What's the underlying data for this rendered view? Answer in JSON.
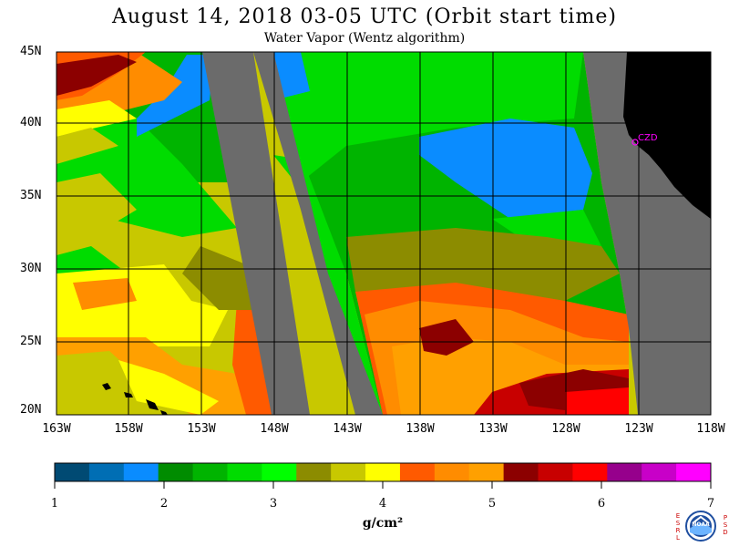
{
  "title": "August 14, 2018  03-05 UTC  (Orbit start time)",
  "subtitle": "Water Vapor (Wentz algorithm)",
  "map": {
    "lat_labels": [
      "45N",
      "40N",
      "35N",
      "30N",
      "25N",
      "20N"
    ],
    "lon_labels": [
      "163W",
      "158W",
      "153W",
      "148W",
      "143W",
      "138W",
      "133W",
      "128W",
      "123W",
      "118W"
    ],
    "station": "CZD",
    "colors": {
      "land": "#000000",
      "nodata": "#6b6b6b",
      "grid": "#000000",
      "station": "#ff00ff"
    }
  },
  "colorbar": {
    "ticks": [
      "1",
      "2",
      "3",
      "4",
      "5",
      "6",
      "7"
    ],
    "units": "g/cm²",
    "colors": [
      "#004a73",
      "#006eb4",
      "#0a8cff",
      "#008c00",
      "#00b400",
      "#00dc00",
      "#00ff00",
      "#8c8c00",
      "#c8c800",
      "#ffff00",
      "#ff5a00",
      "#ff8c00",
      "#ffa000",
      "#8c0000",
      "#c80000",
      "#ff0000",
      "#96008c",
      "#c800c8",
      "#ff00ff"
    ]
  },
  "logo": {
    "left_text": "ESRL",
    "right_text": "PSD",
    "center_text": "NOAA"
  }
}
